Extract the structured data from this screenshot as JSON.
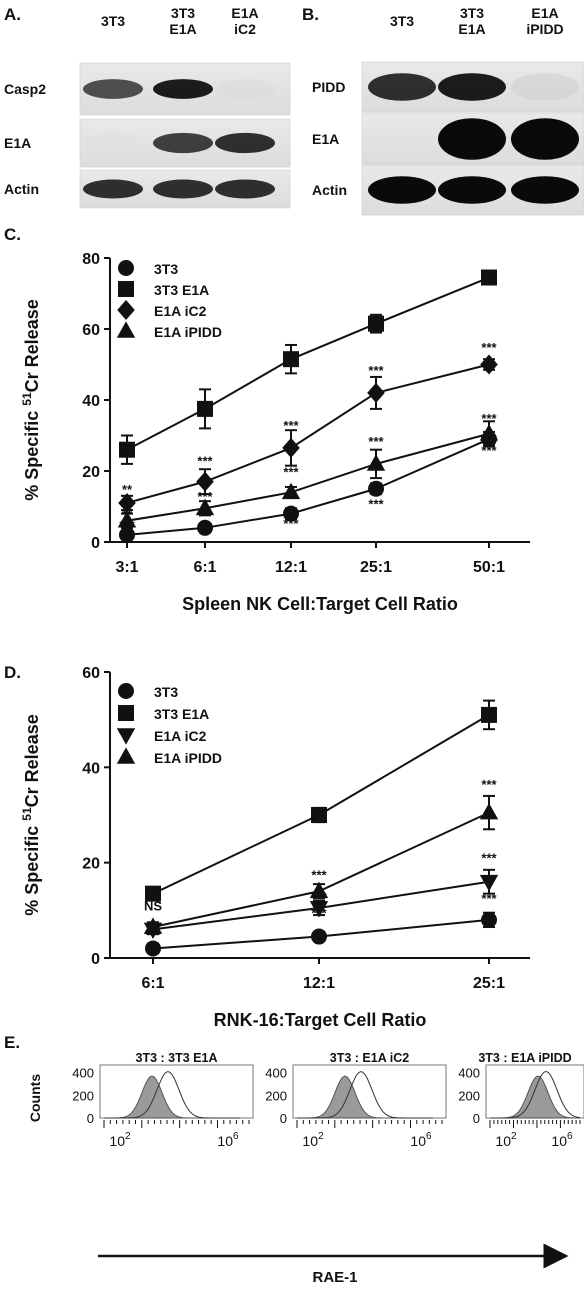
{
  "panels": {
    "A": {
      "letter": "A.",
      "lanes": [
        [
          "3T3"
        ],
        [
          "3T3",
          "E1A"
        ],
        [
          "E1A",
          "iC2"
        ]
      ],
      "rows": [
        "Casp2",
        "E1A",
        "Actin"
      ],
      "band_intensity": [
        [
          0.8,
          0.95,
          0.1
        ],
        [
          0.05,
          0.85,
          0.9
        ],
        [
          0.9,
          0.9,
          0.9
        ]
      ]
    },
    "B": {
      "letter": "B.",
      "lanes": [
        [
          "3T3"
        ],
        [
          "3T3",
          "E1A"
        ],
        [
          "E1A",
          "iPIDD"
        ]
      ],
      "rows": [
        "PIDD",
        "E1A",
        "Actin"
      ],
      "band_intensity": [
        [
          0.9,
          0.95,
          0.15
        ],
        [
          0.0,
          1.0,
          1.0
        ],
        [
          1.0,
          1.0,
          1.0
        ]
      ]
    },
    "E": {
      "letter": "E.",
      "panels": [
        {
          "title": "3T3 : 3T3 E1A"
        },
        {
          "title": "3T3 : E1A iC2"
        },
        {
          "title": "3T3 : E1A iPIDD"
        }
      ],
      "ylabel": "Counts",
      "yticks": [
        "400",
        "200",
        "0"
      ],
      "xtick_base": "10",
      "xtick_exps": [
        "2",
        "6"
      ],
      "xlabel": "RAE-1"
    }
  },
  "chart_data": [
    {
      "panel": "C.",
      "type": "line",
      "categories": [
        "3:1",
        "6:1",
        "12:1",
        "25:1",
        "50:1"
      ],
      "xlabel": "Spleen NK Cell:Target Cell Ratio",
      "ylabel_pre": "% Specific ",
      "ylabel_sup": "51",
      "ylabel_post": "Cr Release",
      "ylim": [
        0,
        80
      ],
      "yticks": [
        0,
        20,
        40,
        60,
        80
      ],
      "legend": "top-left",
      "series": [
        {
          "name": "3T3",
          "marker": "circle",
          "values": [
            2,
            4,
            8,
            15,
            29
          ],
          "err": [
            2,
            1,
            1.5,
            1.5,
            2
          ]
        },
        {
          "name": "3T3 E1A",
          "marker": "square",
          "values": [
            26,
            37.5,
            51.5,
            61.5,
            74.5
          ],
          "err": [
            4,
            5.5,
            4,
            2.5,
            1.5
          ]
        },
        {
          "name": "E1A iC2",
          "marker": "diamond",
          "values": [
            11,
            17,
            26.5,
            42,
            50
          ],
          "err": [
            2,
            3.5,
            5,
            4.5,
            1.5
          ]
        },
        {
          "name": "E1A iPIDD",
          "marker": "triangle-up",
          "values": [
            6,
            9.5,
            14,
            22,
            30.5
          ],
          "err": [
            2,
            2,
            1.5,
            4,
            3.5
          ]
        }
      ],
      "annotations": [
        {
          "text": "**",
          "x": 0,
          "y": 13.5
        },
        {
          "text": "**",
          "x": 0,
          "y": 6.5
        },
        {
          "text": "***",
          "x": 0,
          "y": 3.5
        },
        {
          "text": "***",
          "x": 1,
          "y": 21.5
        },
        {
          "text": "***",
          "x": 1,
          "y": 11.5
        },
        {
          "text": "***",
          "x": 1,
          "y": 2.5
        },
        {
          "text": "***",
          "x": 2,
          "y": 31.5
        },
        {
          "text": "***",
          "x": 2,
          "y": 18.5
        },
        {
          "text": "***",
          "x": 2,
          "y": 4
        },
        {
          "text": "***",
          "x": 3,
          "y": 47
        },
        {
          "text": "***",
          "x": 3,
          "y": 27
        },
        {
          "text": "***",
          "x": 3,
          "y": 9.5
        },
        {
          "text": "***",
          "x": 4,
          "y": 53.5
        },
        {
          "text": "***",
          "x": 4,
          "y": 33.5
        },
        {
          "text": "***",
          "x": 4,
          "y": 24.5
        }
      ]
    },
    {
      "panel": "D.",
      "type": "line",
      "categories": [
        "6:1",
        "12:1",
        "25:1"
      ],
      "xlabel": "RNK-16:Target Cell Ratio",
      "ylabel_pre": "% Specific ",
      "ylabel_sup": "51",
      "ylabel_post": "Cr Release",
      "ylim": [
        0,
        60
      ],
      "yticks": [
        0,
        20,
        40,
        60
      ],
      "legend": "top-left",
      "series": [
        {
          "name": "3T3",
          "marker": "circle",
          "values": [
            2,
            4.5,
            8
          ],
          "err": [
            1,
            1,
            1.5
          ]
        },
        {
          "name": "3T3 E1A",
          "marker": "square",
          "values": [
            13.5,
            30,
            51
          ],
          "err": [
            1,
            1.5,
            3
          ]
        },
        {
          "name": "E1A iC2",
          "marker": "triangle-down",
          "values": [
            6,
            10.5,
            16
          ],
          "err": [
            1,
            1.5,
            2.5
          ]
        },
        {
          "name": "E1A iPIDD",
          "marker": "triangle-up",
          "values": [
            6.5,
            14,
            30.5
          ],
          "err": [
            1,
            1.5,
            3.5
          ]
        }
      ],
      "annotations": [
        {
          "text": "NS",
          "x": 0,
          "y": 10
        },
        {
          "text": "***",
          "x": 0,
          "y": 4
        },
        {
          "text": "***",
          "x": 1,
          "y": 16.5
        },
        {
          "text": "***",
          "x": 1,
          "y": 12
        },
        {
          "text": "***",
          "x": 1,
          "y": 8.5
        },
        {
          "text": "***",
          "x": 2,
          "y": 35.5
        },
        {
          "text": "***",
          "x": 2,
          "y": 20
        },
        {
          "text": "***",
          "x": 2,
          "y": 11.5
        }
      ]
    }
  ]
}
